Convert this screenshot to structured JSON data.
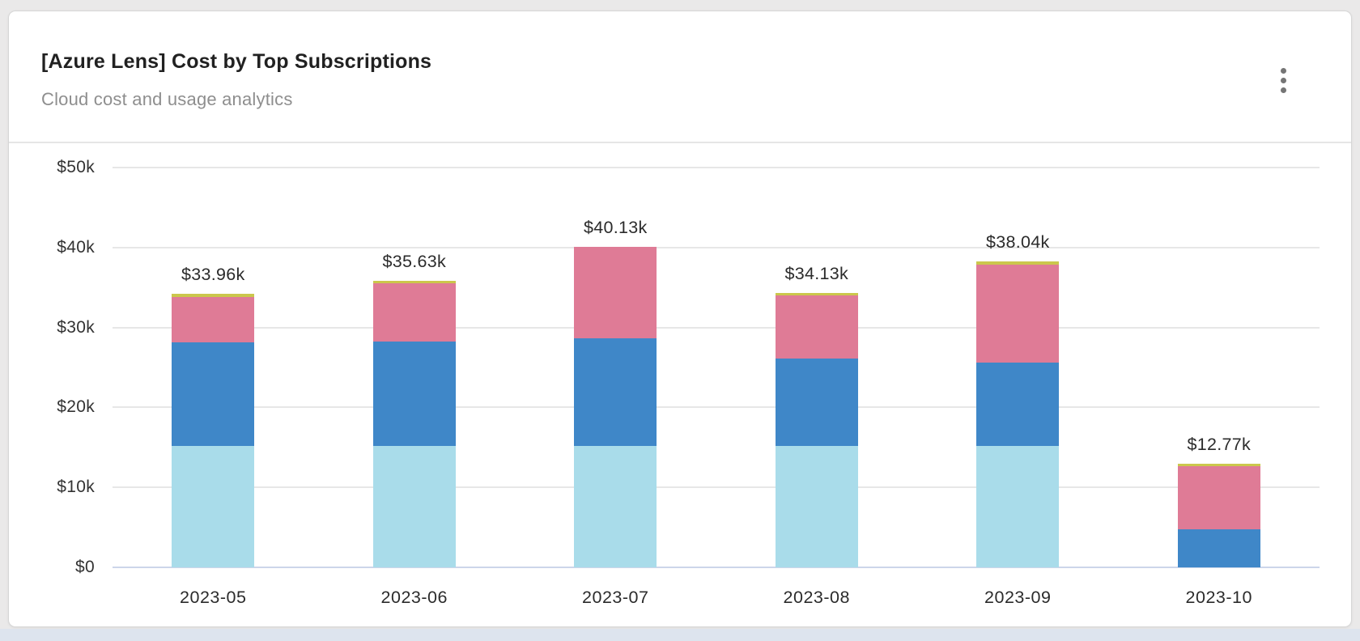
{
  "page": {
    "background_color": "#eae9e9",
    "bottom_strip_color": "#dde4ee"
  },
  "card": {
    "title": "[Azure Lens] Cost by Top Subscriptions",
    "subtitle": "Cloud cost and usage analytics",
    "menu_icon": "kebab-vertical-icon"
  },
  "chart_data": {
    "type": "bar",
    "stacked": true,
    "title": "",
    "xlabel": "",
    "ylabel": "",
    "categories": [
      "2023-05",
      "2023-06",
      "2023-07",
      "2023-08",
      "2023-09",
      "2023-10"
    ],
    "series": [
      {
        "name": "segment-light-blue",
        "color": "#a9dcea",
        "values": [
          15.2,
          15.2,
          15.2,
          15.2,
          15.2,
          0
        ]
      },
      {
        "name": "segment-blue",
        "color": "#3f87c8",
        "values": [
          12.9,
          13.0,
          13.4,
          10.9,
          10.4,
          4.74
        ]
      },
      {
        "name": "segment-pink",
        "color": "#df7b96",
        "values": [
          5.71,
          7.28,
          11.53,
          7.88,
          12.29,
          7.88
        ]
      },
      {
        "name": "segment-yellow",
        "color": "#cbc74c",
        "values": [
          0.15,
          0.15,
          0,
          0.15,
          0.15,
          0.15
        ]
      }
    ],
    "totals": [
      33.96,
      35.63,
      40.13,
      34.13,
      38.04,
      12.77
    ],
    "total_labels": [
      "$33.96k",
      "$35.63k",
      "$40.13k",
      "$34.13k",
      "$38.04k",
      "$12.77k"
    ],
    "ylim": [
      0,
      50
    ],
    "ytick_values": [
      0,
      10,
      20,
      30,
      40,
      50
    ],
    "ytick_labels": [
      "$0",
      "$10k",
      "$20k",
      "$30k",
      "$40k",
      "$50k"
    ],
    "legend": "none",
    "grid": "horizontal",
    "layout_colors": {
      "gridline": "#e7e7e7",
      "axis_line": "#ccd6ea",
      "label_text": "#2b2b2b"
    }
  }
}
